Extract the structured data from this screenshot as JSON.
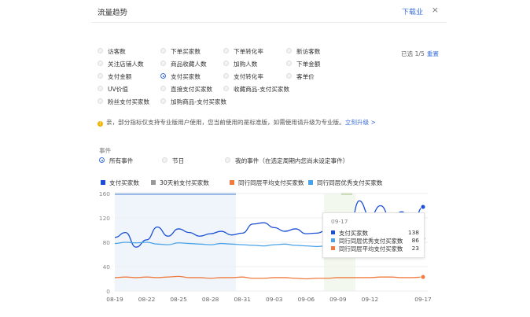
{
  "header": {
    "title": "流量趋势",
    "download_label": "下载业",
    "close_glyph": "×"
  },
  "metrics": [
    [
      "访客数",
      "下单买家数",
      "下单转化率",
      "新访客数"
    ],
    [
      "关注店铺人数",
      "商品收藏人数",
      "加购人数",
      "下单金额"
    ],
    [
      "支付金额",
      "支付买家数",
      "支付转化率",
      "客单价"
    ],
    [
      "UV价值",
      "直接支付买家数",
      "收藏商品-支付买家数"
    ],
    [
      "粉丝支付买家数",
      "加购商品-支付买家数"
    ]
  ],
  "selected_metric": "支付买家数",
  "selection": {
    "count_text": "已选 1/5",
    "reset_label": "重置"
  },
  "notice": {
    "text": "亲，部分指标仅支持专业版用户使用，您当前使用的是标准版，如需使用请升级为专业版。",
    "link_label": "立刻升级 >"
  },
  "events": {
    "label": "事件",
    "options": [
      "所有事件",
      "节日",
      "我的事件（在选定周期内您尚未设定事件）"
    ],
    "selected": "所有事件"
  },
  "legend": [
    {
      "name": "支付买家数",
      "color": "#1a4fd6"
    },
    {
      "name": "30天前支付买家数",
      "color": "#999999"
    },
    {
      "name": "同行同层平均支付买家数",
      "color": "#f07b3f"
    },
    {
      "name": "同行同层优秀支付买家数",
      "color": "#4aa3e8"
    }
  ],
  "tooltip": {
    "date": "09-17",
    "rows": [
      {
        "name": "支付买家数",
        "value": "138",
        "color": "#1a4fd6"
      },
      {
        "name": "同行同层优秀支付买家数",
        "value": "86",
        "color": "#4aa3e8"
      },
      {
        "name": "同行同层平均支付买家数",
        "value": "23",
        "color": "#f07b3f"
      }
    ]
  },
  "chart_data": {
    "type": "line",
    "x_tick_labels": [
      "08-19",
      "08-22",
      "08-25",
      "08-28",
      "08-31",
      "09-03",
      "09-06",
      "09-09",
      "09-12",
      "09-17"
    ],
    "y_tick_labels": [
      "0",
      "40",
      "80",
      "120",
      "160"
    ],
    "ylim": [
      0,
      160
    ],
    "x_count": 30,
    "series": [
      {
        "name": "支付买家数",
        "color": "#1a4fd6",
        "values": [
          88,
          96,
          72,
          84,
          105,
          90,
          102,
          96,
          90,
          94,
          98,
          92,
          95,
          110,
          112,
          104,
          98,
          102,
          94,
          95,
          100,
          98,
          95,
          148,
          122,
          140,
          118,
          130,
          110,
          138
        ]
      },
      {
        "name": "同行同层优秀支付买家数",
        "color": "#4aa3e8",
        "values": [
          78,
          80,
          79,
          80,
          77,
          76,
          79,
          78,
          77,
          76,
          78,
          77,
          76,
          75,
          74,
          76,
          77,
          75,
          74,
          73,
          74,
          75,
          74,
          78,
          79,
          80,
          82,
          84,
          85,
          86
        ]
      },
      {
        "name": "同行同层平均支付买家数",
        "color": "#f07b3f",
        "values": [
          22,
          23,
          22,
          23,
          22,
          23,
          24,
          22,
          22,
          21,
          22,
          22,
          23,
          21,
          21,
          22,
          22,
          21,
          20,
          21,
          21,
          22,
          22,
          22,
          22,
          23,
          23,
          22,
          22,
          23
        ]
      }
    ]
  }
}
